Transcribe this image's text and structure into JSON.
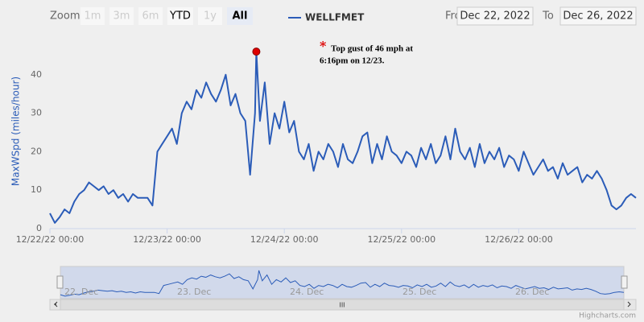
{
  "chart_data": {
    "type": "line",
    "y_axis_label": "MaxWSpd (miles/hour)",
    "x": [
      "12/22/22 00:00",
      "12/22/22 01:00",
      "12/22/22 02:00",
      "12/22/22 03:00",
      "12/22/22 04:00",
      "12/22/22 05:00",
      "12/22/22 06:00",
      "12/22/22 07:00",
      "12/22/22 08:00",
      "12/22/22 09:00",
      "12/22/22 10:00",
      "12/22/22 11:00",
      "12/22/22 12:00",
      "12/22/22 13:00",
      "12/22/22 14:00",
      "12/22/22 15:00",
      "12/22/22 16:00",
      "12/22/22 17:00",
      "12/22/22 18:00",
      "12/22/22 19:00",
      "12/22/22 20:00",
      "12/22/22 21:00",
      "12/22/22 22:00",
      "12/22/22 23:00",
      "12/23/22 00:00",
      "12/23/22 01:00",
      "12/23/22 02:00",
      "12/23/22 03:00",
      "12/23/22 04:00",
      "12/23/22 05:00",
      "12/23/22 06:00",
      "12/23/22 07:00",
      "12/23/22 08:00",
      "12/23/22 09:00",
      "12/23/22 10:00",
      "12/23/22 11:00",
      "12/23/22 12:00",
      "12/23/22 13:00",
      "12/23/22 14:00",
      "12/23/22 15:00",
      "12/23/22 16:00",
      "12/23/22 17:00",
      "12/23/22 18:00",
      "12/23/22 18:16",
      "12/23/22 19:00",
      "12/23/22 20:00",
      "12/23/22 21:00",
      "12/23/22 22:00",
      "12/23/22 23:00",
      "12/24/22 00:00",
      "12/24/22 01:00",
      "12/24/22 02:00",
      "12/24/22 03:00",
      "12/24/22 04:00",
      "12/24/22 05:00",
      "12/24/22 06:00",
      "12/24/22 07:00",
      "12/24/22 08:00",
      "12/24/22 09:00",
      "12/24/22 10:00",
      "12/24/22 11:00",
      "12/24/22 12:00",
      "12/24/22 13:00",
      "12/24/22 14:00",
      "12/24/22 15:00",
      "12/24/22 16:00",
      "12/24/22 17:00",
      "12/24/22 18:00",
      "12/24/22 19:00",
      "12/24/22 20:00",
      "12/24/22 21:00",
      "12/24/22 22:00",
      "12/24/22 23:00",
      "12/25/22 00:00",
      "12/25/22 01:00",
      "12/25/22 02:00",
      "12/25/22 03:00",
      "12/25/22 04:00",
      "12/25/22 05:00",
      "12/25/22 06:00",
      "12/25/22 07:00",
      "12/25/22 08:00",
      "12/25/22 09:00",
      "12/25/22 10:00",
      "12/25/22 11:00",
      "12/25/22 12:00",
      "12/25/22 13:00",
      "12/25/22 14:00",
      "12/25/22 15:00",
      "12/25/22 16:00",
      "12/25/22 17:00",
      "12/25/22 18:00",
      "12/25/22 19:00",
      "12/25/22 20:00",
      "12/25/22 21:00",
      "12/25/22 22:00",
      "12/25/22 23:00",
      "12/26/22 00:00",
      "12/26/22 01:00",
      "12/26/22 02:00",
      "12/26/22 03:00",
      "12/26/22 04:00",
      "12/26/22 05:00",
      "12/26/22 06:00",
      "12/26/22 07:00",
      "12/26/22 08:00",
      "12/26/22 09:00",
      "12/26/22 10:00",
      "12/26/22 11:00",
      "12/26/22 12:00",
      "12/26/22 13:00",
      "12/26/22 14:00",
      "12/26/22 15:00",
      "12/26/22 16:00",
      "12/26/22 17:00",
      "12/26/22 18:00",
      "12/26/22 19:00",
      "12/26/22 20:00",
      "12/26/22 21:00",
      "12/26/22 22:00",
      "12/26/22 23:00",
      "12/27/22 00:00"
    ],
    "series": [
      {
        "name": "WELLFMET",
        "color": "#2b5cb8",
        "values": [
          4,
          1.5,
          3,
          5,
          4,
          7,
          9,
          10,
          12,
          11,
          10,
          11,
          9,
          10,
          8,
          9,
          7,
          9,
          8,
          8,
          8,
          6,
          20,
          22,
          24,
          26,
          22,
          30,
          33,
          31,
          36,
          34,
          38,
          35,
          33,
          36,
          40,
          32,
          35,
          30,
          28,
          14,
          30,
          46,
          28,
          38,
          22,
          30,
          26,
          33,
          25,
          28,
          20,
          18,
          22,
          15,
          20,
          18,
          22,
          20,
          16,
          22,
          18,
          17,
          20,
          24,
          25,
          17,
          22,
          18,
          24,
          20,
          19,
          17,
          20,
          19,
          16,
          21,
          18,
          22,
          17,
          19,
          24,
          18,
          26,
          20,
          18,
          21,
          16,
          22,
          17,
          20,
          18,
          21,
          16,
          19,
          18,
          15,
          20,
          17,
          14,
          16,
          18,
          15,
          16,
          13,
          17,
          14,
          15,
          16,
          12,
          14,
          13,
          15,
          13,
          10,
          6,
          5,
          6,
          8,
          9,
          8
        ]
      }
    ],
    "xlim": [
      "12/22/22 00:00",
      "12/27/22 00:00"
    ],
    "xticks": [
      "12/22/22 00:00",
      "12/23/22 00:00",
      "12/24/22 00:00",
      "12/25/22 00:00",
      "12/26/22 00:00"
    ],
    "ylim": [
      0,
      50
    ],
    "yticks": [
      0,
      10,
      20,
      30,
      40
    ],
    "grid": false,
    "annotation": {
      "symbol": "*",
      "lines": [
        "Top gust of 46 mph at",
        "6:16pm on 12/23."
      ],
      "color": "#dd0000"
    },
    "range_selector": {
      "label": "Zoom",
      "buttons": [
        "1m",
        "3m",
        "6m",
        "YTD",
        "1y",
        "All"
      ],
      "selected": "All"
    },
    "date_inputs": {
      "from_label": "From",
      "from": "Dec 22, 2022",
      "to_label": "To",
      "to": "Dec 26, 2022"
    },
    "navigator": {
      "labels": [
        "22. Dec",
        "23. Dec",
        "24. Dec",
        "25. Dec",
        "26. Dec"
      ],
      "scrollbar_grip": "III"
    },
    "credits": "Highcharts.com"
  }
}
